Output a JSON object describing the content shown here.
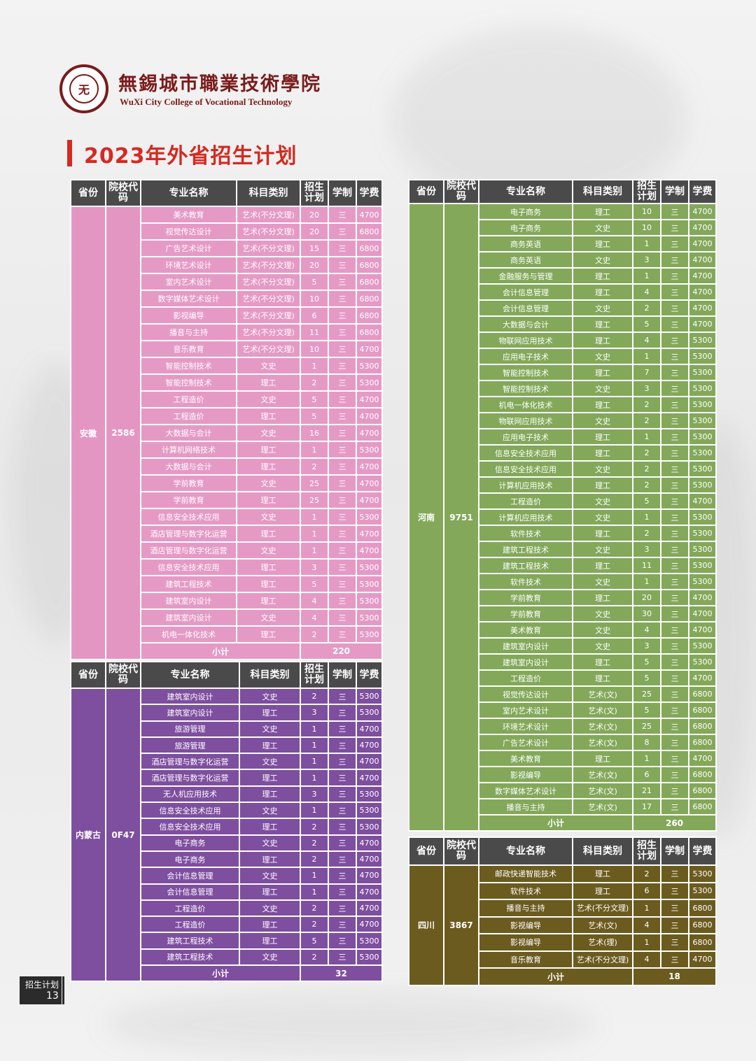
{
  "header": {
    "school_cn": "無錫城市職業技術學院",
    "school_en": "WuXi City College of Vocational Technology",
    "logo_char": "无"
  },
  "page_title": "2023年外省招生计划",
  "footer": {
    "label": "招生计划",
    "page": "13"
  },
  "columns": [
    "省份",
    "院校代码",
    "专业名称",
    "科目类别",
    "招生计划",
    "学制",
    "学费"
  ],
  "subtotal_label": "小计",
  "anhui": {
    "province": "安徽",
    "code": "2586",
    "subtotal": "220",
    "rows": [
      [
        "美术教育",
        "艺术(不分文理)",
        "20",
        "三",
        "4700"
      ],
      [
        "视觉传达设计",
        "艺术(不分文理)",
        "20",
        "三",
        "6800"
      ],
      [
        "广告艺术设计",
        "艺术(不分文理)",
        "15",
        "三",
        "6800"
      ],
      [
        "环境艺术设计",
        "艺术(不分文理)",
        "20",
        "三",
        "6800"
      ],
      [
        "室内艺术设计",
        "艺术(不分文理)",
        "5",
        "三",
        "6800"
      ],
      [
        "数字媒体艺术设计",
        "艺术(不分文理)",
        "10",
        "三",
        "6800"
      ],
      [
        "影视编导",
        "艺术(不分文理)",
        "6",
        "三",
        "6800"
      ],
      [
        "播音与主持",
        "艺术(不分文理)",
        "11",
        "三",
        "6800"
      ],
      [
        "音乐教育",
        "艺术(不分文理)",
        "10",
        "三",
        "4700"
      ],
      [
        "智能控制技术",
        "文史",
        "1",
        "三",
        "5300"
      ],
      [
        "智能控制技术",
        "理工",
        "2",
        "三",
        "5300"
      ],
      [
        "工程造价",
        "文史",
        "5",
        "三",
        "4700"
      ],
      [
        "工程造价",
        "理工",
        "5",
        "三",
        "4700"
      ],
      [
        "大数据与会计",
        "文史",
        "16",
        "三",
        "4700"
      ],
      [
        "计算机网络技术",
        "理工",
        "1",
        "三",
        "5300"
      ],
      [
        "大数据与会计",
        "理工",
        "2",
        "三",
        "4700"
      ],
      [
        "学前教育",
        "文史",
        "25",
        "三",
        "4700"
      ],
      [
        "学前教育",
        "理工",
        "25",
        "三",
        "4700"
      ],
      [
        "信息安全技术应用",
        "文史",
        "1",
        "三",
        "5300"
      ],
      [
        "酒店管理与数字化运营",
        "理工",
        "1",
        "三",
        "4700"
      ],
      [
        "酒店管理与数字化运营",
        "文史",
        "1",
        "三",
        "4700"
      ],
      [
        "信息安全技术应用",
        "理工",
        "3",
        "三",
        "5300"
      ],
      [
        "建筑工程技术",
        "理工",
        "5",
        "三",
        "5300"
      ],
      [
        "建筑室内设计",
        "理工",
        "4",
        "三",
        "5300"
      ],
      [
        "建筑室内设计",
        "文史",
        "4",
        "三",
        "5300"
      ],
      [
        "机电一体化技术",
        "理工",
        "2",
        "三",
        "5300"
      ]
    ]
  },
  "neimenggu": {
    "province": "内蒙古",
    "code": "0F47",
    "subtotal": "32",
    "rows": [
      [
        "建筑室内设计",
        "文史",
        "2",
        "三",
        "5300"
      ],
      [
        "建筑室内设计",
        "理工",
        "3",
        "三",
        "5300"
      ],
      [
        "旅游管理",
        "文史",
        "1",
        "三",
        "4700"
      ],
      [
        "旅游管理",
        "理工",
        "1",
        "三",
        "4700"
      ],
      [
        "酒店管理与数字化运营",
        "文史",
        "1",
        "三",
        "4700"
      ],
      [
        "酒店管理与数字化运营",
        "理工",
        "1",
        "三",
        "4700"
      ],
      [
        "无人机应用技术",
        "理工",
        "3",
        "三",
        "5300"
      ],
      [
        "信息安全技术应用",
        "文史",
        "1",
        "三",
        "5300"
      ],
      [
        "信息安全技术应用",
        "理工",
        "2",
        "三",
        "5300"
      ],
      [
        "电子商务",
        "文史",
        "2",
        "三",
        "4700"
      ],
      [
        "电子商务",
        "理工",
        "2",
        "三",
        "4700"
      ],
      [
        "会计信息管理",
        "文史",
        "1",
        "三",
        "4700"
      ],
      [
        "会计信息管理",
        "理工",
        "1",
        "三",
        "4700"
      ],
      [
        "工程造价",
        "文史",
        "2",
        "三",
        "4700"
      ],
      [
        "工程造价",
        "理工",
        "2",
        "三",
        "4700"
      ],
      [
        "建筑工程技术",
        "理工",
        "5",
        "三",
        "5300"
      ],
      [
        "建筑工程技术",
        "文史",
        "2",
        "三",
        "5300"
      ]
    ]
  },
  "henan": {
    "province": "河南",
    "code": "9751",
    "subtotal": "260",
    "rows": [
      [
        "电子商务",
        "理工",
        "10",
        "三",
        "4700"
      ],
      [
        "电子商务",
        "文史",
        "10",
        "三",
        "4700"
      ],
      [
        "商务英语",
        "理工",
        "1",
        "三",
        "4700"
      ],
      [
        "商务英语",
        "文史",
        "3",
        "三",
        "4700"
      ],
      [
        "金融服务与管理",
        "理工",
        "1",
        "三",
        "4700"
      ],
      [
        "会计信息管理",
        "理工",
        "4",
        "三",
        "4700"
      ],
      [
        "会计信息管理",
        "文史",
        "2",
        "三",
        "4700"
      ],
      [
        "大数据与会计",
        "理工",
        "5",
        "三",
        "4700"
      ],
      [
        "物联网应用技术",
        "理工",
        "4",
        "三",
        "5300"
      ],
      [
        "应用电子技术",
        "文史",
        "1",
        "三",
        "5300"
      ],
      [
        "智能控制技术",
        "理工",
        "7",
        "三",
        "5300"
      ],
      [
        "智能控制技术",
        "文史",
        "3",
        "三",
        "5300"
      ],
      [
        "机电一体化技术",
        "理工",
        "2",
        "三",
        "5300"
      ],
      [
        "物联网应用技术",
        "文史",
        "2",
        "三",
        "5300"
      ],
      [
        "应用电子技术",
        "理工",
        "1",
        "三",
        "5300"
      ],
      [
        "信息安全技术应用",
        "理工",
        "2",
        "三",
        "5300"
      ],
      [
        "信息安全技术应用",
        "文史",
        "2",
        "三",
        "5300"
      ],
      [
        "计算机应用技术",
        "理工",
        "2",
        "三",
        "5300"
      ],
      [
        "工程造价",
        "文史",
        "5",
        "三",
        "4700"
      ],
      [
        "计算机应用技术",
        "文史",
        "1",
        "三",
        "5300"
      ],
      [
        "软件技术",
        "理工",
        "2",
        "三",
        "5300"
      ],
      [
        "建筑工程技术",
        "文史",
        "3",
        "三",
        "5300"
      ],
      [
        "建筑工程技术",
        "理工",
        "11",
        "三",
        "5300"
      ],
      [
        "软件技术",
        "文史",
        "1",
        "三",
        "5300"
      ],
      [
        "学前教育",
        "理工",
        "20",
        "三",
        "4700"
      ],
      [
        "学前教育",
        "文史",
        "30",
        "三",
        "4700"
      ],
      [
        "美术教育",
        "文史",
        "4",
        "三",
        "4700"
      ],
      [
        "建筑室内设计",
        "文史",
        "3",
        "三",
        "5300"
      ],
      [
        "建筑室内设计",
        "理工",
        "5",
        "三",
        "5300"
      ],
      [
        "工程造价",
        "理工",
        "5",
        "三",
        "4700"
      ],
      [
        "视觉传达设计",
        "艺术(文)",
        "25",
        "三",
        "6800"
      ],
      [
        "室内艺术设计",
        "艺术(文)",
        "5",
        "三",
        "6800"
      ],
      [
        "环境艺术设计",
        "艺术(文)",
        "25",
        "三",
        "6800"
      ],
      [
        "广告艺术设计",
        "艺术(文)",
        "8",
        "三",
        "6800"
      ],
      [
        "美术教育",
        "理工",
        "1",
        "三",
        "4700"
      ],
      [
        "影视编导",
        "艺术(文)",
        "6",
        "三",
        "6800"
      ],
      [
        "数字媒体艺术设计",
        "艺术(文)",
        "21",
        "三",
        "6800"
      ],
      [
        "播音与主持",
        "艺术(文)",
        "17",
        "三",
        "6800"
      ]
    ]
  },
  "sichuan": {
    "province": "四川",
    "code": "3867",
    "subtotal": "18",
    "rows": [
      [
        "邮政快递智能技术",
        "理工",
        "2",
        "三",
        "5300"
      ],
      [
        "软件技术",
        "理工",
        "6",
        "三",
        "5300"
      ],
      [
        "播音与主持",
        "艺术(不分文理)",
        "1",
        "三",
        "6800"
      ],
      [
        "影视编导",
        "艺术(文)",
        "4",
        "三",
        "6800"
      ],
      [
        "影视编导",
        "艺术(理)",
        "1",
        "三",
        "6800"
      ],
      [
        "音乐教育",
        "艺术(不分文理)",
        "4",
        "三",
        "4700"
      ]
    ]
  },
  "colors": {
    "anhui": "#e59ac6",
    "neimenggu": "#7e4e9f",
    "henan": "#83a85a",
    "sichuan": "#6b5b1f",
    "header": "#4a4a4a",
    "title": "#d42a22",
    "brand": "#7a1b1b"
  }
}
